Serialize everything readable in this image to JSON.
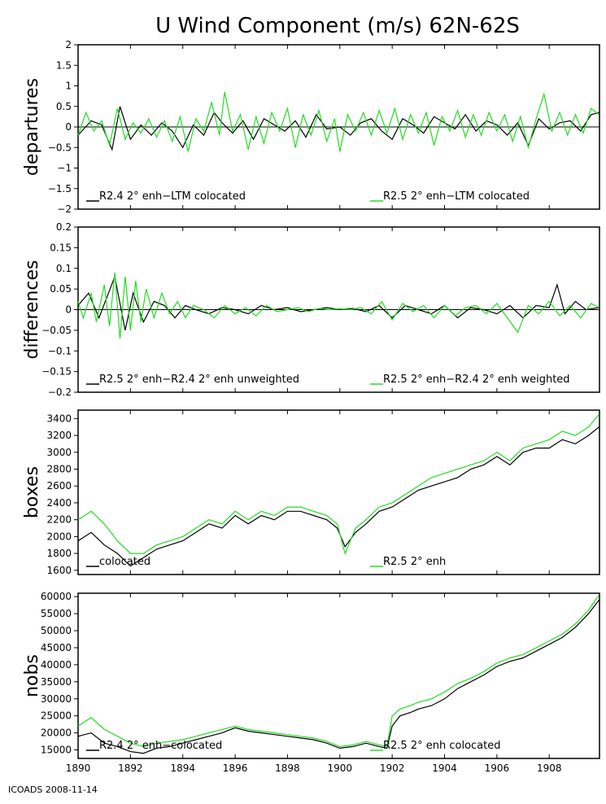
{
  "title": "U Wind Component (m/s) 62N-62S",
  "footer": "ICOADS 2008-11-14",
  "colors": {
    "black_series": "#000000",
    "green_series": "#22dd22",
    "frame": "#000000"
  },
  "x_axis": {
    "range": [
      1890,
      1909.92
    ],
    "ticks": [
      1890,
      1892,
      1894,
      1896,
      1898,
      1900,
      1902,
      1904,
      1906,
      1908
    ],
    "tick_labels": [
      "1890",
      "1892",
      "1894",
      "1896",
      "1898",
      "1900",
      "1902",
      "1904",
      "1906",
      "1908"
    ]
  },
  "chart_data": [
    {
      "type": "line",
      "ylabel": "departures",
      "ylim": [
        -2,
        2
      ],
      "yticks": [
        -2,
        -1.5,
        -1,
        -0.5,
        0,
        0.5,
        1,
        1.5,
        2
      ],
      "ytick_labels": [
        "−2",
        "−1.5",
        "−1",
        "−0.5",
        "0",
        "0.5",
        "1",
        "1.5",
        "2"
      ],
      "zero_line": true,
      "grid": false,
      "legend_position": "bottom",
      "series": [
        {
          "name": "R2.4 2° enh−LTM colocated",
          "color": "#000000",
          "x": [
            1890.0,
            1890.5,
            1890.9,
            1891.3,
            1891.6,
            1892.0,
            1892.4,
            1892.8,
            1893.2,
            1893.6,
            1894.0,
            1894.4,
            1894.8,
            1895.2,
            1895.5,
            1895.9,
            1896.3,
            1896.7,
            1897.1,
            1897.5,
            1897.9,
            1898.3,
            1898.7,
            1899.1,
            1899.5,
            1900.0,
            1900.4,
            1900.8,
            1901.2,
            1901.6,
            1902.0,
            1902.4,
            1902.8,
            1903.2,
            1903.6,
            1904.0,
            1904.4,
            1904.8,
            1905.2,
            1905.6,
            1906.0,
            1906.4,
            1906.8,
            1907.2,
            1907.6,
            1908.0,
            1908.4,
            1908.8,
            1909.2,
            1909.6,
            1909.9
          ],
          "y": [
            -0.2,
            0.15,
            0.05,
            -0.55,
            0.5,
            -0.3,
            0.05,
            -0.2,
            0.1,
            -0.1,
            -0.5,
            0.05,
            -0.2,
            0.35,
            0.1,
            -0.15,
            0.15,
            -0.3,
            0.2,
            0.05,
            -0.1,
            0.15,
            -0.25,
            0.3,
            -0.05,
            0.0,
            -0.2,
            0.1,
            0.2,
            -0.1,
            -0.3,
            0.2,
            0.05,
            -0.15,
            0.25,
            0.1,
            -0.05,
            0.3,
            -0.1,
            0.15,
            0.05,
            -0.2,
            0.1,
            -0.45,
            0.2,
            -0.05,
            0.1,
            0.15,
            -0.1,
            0.3,
            0.35
          ]
        },
        {
          "name": "R2.5 2° enh−LTM colocated",
          "color": "#22dd22",
          "x": [
            1890.0,
            1890.3,
            1890.6,
            1890.9,
            1891.2,
            1891.5,
            1891.8,
            1892.1,
            1892.4,
            1892.7,
            1893.0,
            1893.3,
            1893.6,
            1893.9,
            1894.2,
            1894.5,
            1894.8,
            1895.1,
            1895.4,
            1895.6,
            1895.9,
            1896.2,
            1896.5,
            1896.8,
            1897.1,
            1897.4,
            1897.7,
            1898.0,
            1898.3,
            1898.6,
            1898.9,
            1899.2,
            1899.5,
            1899.8,
            1900.0,
            1900.3,
            1900.6,
            1900.9,
            1901.2,
            1901.5,
            1901.8,
            1902.1,
            1902.4,
            1902.7,
            1903.0,
            1903.3,
            1903.6,
            1903.9,
            1904.2,
            1904.5,
            1904.8,
            1905.1,
            1905.4,
            1905.7,
            1906.0,
            1906.3,
            1906.6,
            1906.9,
            1907.2,
            1907.5,
            1907.8,
            1908.1,
            1908.4,
            1908.7,
            1909.0,
            1909.3,
            1909.6,
            1909.9
          ],
          "y": [
            -0.2,
            0.35,
            -0.1,
            0.15,
            -0.45,
            0.45,
            -0.3,
            0.1,
            -0.15,
            0.2,
            -0.25,
            0.15,
            -0.35,
            0.25,
            -0.6,
            0.2,
            -0.1,
            0.6,
            -0.2,
            0.85,
            -0.1,
            0.3,
            -0.55,
            0.25,
            -0.4,
            0.35,
            -0.1,
            0.45,
            -0.5,
            0.3,
            -0.2,
            0.4,
            -0.35,
            0.2,
            -0.6,
            0.3,
            -0.1,
            0.35,
            -0.2,
            0.4,
            -0.15,
            0.45,
            -0.3,
            0.3,
            -0.15,
            0.35,
            -0.45,
            0.25,
            -0.1,
            0.4,
            -0.25,
            0.3,
            -0.2,
            0.35,
            -0.1,
            0.3,
            -0.35,
            0.25,
            -0.5,
            0.2,
            0.8,
            -0.1,
            0.35,
            -0.2,
            0.3,
            -0.15,
            0.45,
            0.3
          ]
        }
      ]
    },
    {
      "type": "line",
      "ylabel": "differences",
      "ylim": [
        -0.2,
        0.2
      ],
      "yticks": [
        -0.2,
        -0.15,
        -0.1,
        -0.05,
        0,
        0.05,
        0.1,
        0.15,
        0.2
      ],
      "ytick_labels": [
        "−0.2",
        "−0.15",
        "−0.1",
        "−0.05",
        "0",
        "0.05",
        "0.1",
        "0.15",
        "0.2"
      ],
      "zero_line": true,
      "grid": false,
      "legend_position": "bottom",
      "series": [
        {
          "name": "R2.5 2° enh−R2.4 2° enh unweighted",
          "color": "#000000",
          "x": [
            1890.0,
            1890.4,
            1890.8,
            1891.1,
            1891.4,
            1891.8,
            1892.1,
            1892.5,
            1892.9,
            1893.3,
            1893.7,
            1894.1,
            1894.5,
            1895.0,
            1895.5,
            1896.0,
            1896.5,
            1897.0,
            1897.5,
            1898.0,
            1898.5,
            1899.0,
            1899.5,
            1900.0,
            1900.5,
            1901.0,
            1901.5,
            1902.0,
            1902.5,
            1903.0,
            1903.5,
            1904.0,
            1904.5,
            1905.0,
            1905.5,
            1906.0,
            1906.5,
            1907.0,
            1907.5,
            1908.0,
            1908.3,
            1908.6,
            1909.0,
            1909.4,
            1909.9
          ],
          "y": [
            0.01,
            0.04,
            -0.02,
            0.03,
            0.08,
            -0.05,
            0.04,
            -0.03,
            0.02,
            0.01,
            -0.02,
            0.01,
            0.0,
            -0.01,
            0.005,
            0.0,
            -0.01,
            0.01,
            0.0,
            0.005,
            -0.005,
            0.0,
            0.005,
            0.0,
            0.003,
            -0.005,
            0.01,
            -0.02,
            0.01,
            0.0,
            -0.01,
            0.01,
            -0.02,
            0.005,
            0.0,
            -0.01,
            0.01,
            -0.02,
            0.01,
            0.005,
            0.06,
            -0.01,
            0.02,
            0.0,
            0.005
          ]
        },
        {
          "name": "R2.5 2° enh−R2.4 2° enh weighted",
          "color": "#22dd22",
          "x": [
            1890.0,
            1890.2,
            1890.5,
            1890.7,
            1891.0,
            1891.2,
            1891.4,
            1891.6,
            1891.8,
            1892.0,
            1892.2,
            1892.4,
            1892.6,
            1892.9,
            1893.2,
            1893.5,
            1893.8,
            1894.1,
            1894.4,
            1894.8,
            1895.2,
            1895.6,
            1896.0,
            1896.4,
            1896.8,
            1897.2,
            1897.6,
            1898.0,
            1898.4,
            1898.8,
            1899.2,
            1899.6,
            1900.0,
            1900.4,
            1900.8,
            1901.2,
            1901.6,
            1902.0,
            1902.4,
            1902.8,
            1903.2,
            1903.6,
            1904.0,
            1904.4,
            1904.8,
            1905.2,
            1905.6,
            1906.0,
            1906.4,
            1906.8,
            1907.2,
            1907.6,
            1908.0,
            1908.4,
            1908.8,
            1909.2,
            1909.6,
            1909.9
          ],
          "y": [
            0.02,
            -0.02,
            0.04,
            -0.03,
            0.06,
            -0.04,
            0.09,
            -0.07,
            0.08,
            -0.05,
            0.07,
            -0.03,
            0.05,
            -0.02,
            0.04,
            -0.01,
            0.02,
            -0.02,
            0.01,
            0.0,
            -0.02,
            0.01,
            -0.01,
            0.005,
            -0.015,
            0.01,
            -0.005,
            0.0,
            0.005,
            -0.005,
            0.003,
            0.0,
            0.002,
            0.0,
            0.005,
            -0.01,
            0.02,
            -0.025,
            0.015,
            -0.005,
            0.01,
            -0.02,
            0.01,
            -0.015,
            0.005,
            0.01,
            -0.01,
            0.015,
            -0.02,
            -0.055,
            0.01,
            -0.01,
            0.02,
            -0.015,
            0.01,
            -0.02,
            0.015,
            0.005
          ]
        }
      ]
    },
    {
      "type": "line",
      "ylabel": "boxes",
      "ylim": [
        1550,
        3500
      ],
      "yticks": [
        1600,
        1800,
        2000,
        2200,
        2400,
        2600,
        2800,
        3000,
        3200,
        3400
      ],
      "ytick_labels": [
        "1600",
        "1800",
        "2000",
        "2200",
        "2400",
        "2600",
        "2800",
        "3000",
        "3200",
        "3400"
      ],
      "zero_line": false,
      "grid": false,
      "legend_position": "bottom",
      "series": [
        {
          "name": "colocated",
          "color": "#000000",
          "x": [
            1890.0,
            1890.5,
            1891.0,
            1891.5,
            1892.0,
            1892.5,
            1893.0,
            1893.5,
            1894.0,
            1894.5,
            1895.0,
            1895.5,
            1896.0,
            1896.5,
            1897.0,
            1897.5,
            1898.0,
            1898.5,
            1899.0,
            1899.5,
            1899.9,
            1900.2,
            1900.6,
            1901.0,
            1901.5,
            1902.0,
            1902.5,
            1903.0,
            1903.5,
            1904.0,
            1904.5,
            1905.0,
            1905.5,
            1906.0,
            1906.5,
            1907.0,
            1907.5,
            1908.0,
            1908.5,
            1909.0,
            1909.5,
            1909.9
          ],
          "y": [
            1950,
            2050,
            1900,
            1800,
            1650,
            1750,
            1850,
            1900,
            1950,
            2050,
            2150,
            2100,
            2250,
            2150,
            2250,
            2200,
            2300,
            2300,
            2250,
            2200,
            2100,
            1880,
            2050,
            2150,
            2300,
            2350,
            2450,
            2550,
            2600,
            2650,
            2700,
            2800,
            2850,
            2950,
            2850,
            3000,
            3050,
            3050,
            3150,
            3100,
            3200,
            3300
          ]
        },
        {
          "name": "R2.5 2° enh",
          "color": "#22dd22",
          "x": [
            1890.0,
            1890.5,
            1891.0,
            1891.5,
            1892.0,
            1892.5,
            1893.0,
            1893.5,
            1894.0,
            1894.5,
            1895.0,
            1895.5,
            1896.0,
            1896.5,
            1897.0,
            1897.5,
            1898.0,
            1898.5,
            1899.0,
            1899.5,
            1899.9,
            1900.2,
            1900.6,
            1901.0,
            1901.5,
            1902.0,
            1902.5,
            1903.0,
            1903.5,
            1904.0,
            1904.5,
            1905.0,
            1905.5,
            1906.0,
            1906.5,
            1907.0,
            1907.5,
            1908.0,
            1908.5,
            1909.0,
            1909.5,
            1909.9
          ],
          "y": [
            2200,
            2300,
            2150,
            1950,
            1800,
            1800,
            1900,
            1950,
            2000,
            2100,
            2200,
            2150,
            2300,
            2200,
            2300,
            2250,
            2350,
            2350,
            2300,
            2250,
            2150,
            1800,
            2100,
            2200,
            2350,
            2400,
            2500,
            2600,
            2700,
            2750,
            2800,
            2850,
            2900,
            3000,
            2900,
            3050,
            3100,
            3150,
            3250,
            3200,
            3300,
            3450
          ]
        }
      ]
    },
    {
      "type": "line",
      "ylabel": "nobs",
      "ylim": [
        12500,
        61000
      ],
      "yticks": [
        15000,
        20000,
        25000,
        30000,
        35000,
        40000,
        45000,
        50000,
        55000,
        60000
      ],
      "ytick_labels": [
        "15000",
        "20000",
        "25000",
        "30000",
        "35000",
        "40000",
        "45000",
        "50000",
        "55000",
        "60000"
      ],
      "zero_line": false,
      "grid": false,
      "legend_position": "bottom",
      "series": [
        {
          "name": "R2.4 2° enh−colocated",
          "color": "#000000",
          "x": [
            1890.0,
            1890.5,
            1891.0,
            1891.5,
            1892.0,
            1892.5,
            1893.0,
            1893.5,
            1894.0,
            1894.5,
            1895.0,
            1895.5,
            1896.0,
            1896.5,
            1897.0,
            1897.5,
            1898.0,
            1898.5,
            1899.0,
            1899.5,
            1900.0,
            1900.5,
            1901.0,
            1901.5,
            1901.8,
            1902.0,
            1902.3,
            1902.7,
            1903.0,
            1903.5,
            1904.0,
            1904.5,
            1905.0,
            1905.5,
            1906.0,
            1906.5,
            1907.0,
            1907.5,
            1908.0,
            1908.5,
            1909.0,
            1909.5,
            1909.9
          ],
          "y": [
            19000,
            20000,
            17000,
            16000,
            14500,
            14000,
            15500,
            16000,
            17000,
            18000,
            19000,
            20000,
            21500,
            20500,
            20000,
            19500,
            19000,
            18500,
            18000,
            17000,
            15500,
            16000,
            17000,
            16000,
            15500,
            22000,
            25000,
            26000,
            27000,
            28000,
            30000,
            33000,
            35000,
            37000,
            39500,
            41000,
            42000,
            44000,
            46000,
            48000,
            51000,
            55000,
            59000
          ]
        },
        {
          "name": "R2.5 2° enh colocated",
          "color": "#22dd22",
          "x": [
            1890.0,
            1890.5,
            1891.0,
            1891.5,
            1892.0,
            1892.5,
            1893.0,
            1893.5,
            1894.0,
            1894.5,
            1895.0,
            1895.5,
            1896.0,
            1896.5,
            1897.0,
            1897.5,
            1898.0,
            1898.5,
            1899.0,
            1899.5,
            1900.0,
            1900.5,
            1901.0,
            1901.5,
            1901.8,
            1902.0,
            1902.3,
            1902.7,
            1903.0,
            1903.5,
            1904.0,
            1904.5,
            1905.0,
            1905.5,
            1906.0,
            1906.5,
            1907.0,
            1907.5,
            1908.0,
            1908.5,
            1909.0,
            1909.5,
            1909.9
          ],
          "y": [
            22000,
            24500,
            21000,
            19000,
            17000,
            16000,
            17000,
            17500,
            18000,
            19000,
            20000,
            21000,
            22000,
            21000,
            20500,
            20000,
            19500,
            19000,
            18500,
            17500,
            16000,
            16500,
            17500,
            16500,
            16000,
            25000,
            27000,
            28000,
            29000,
            30000,
            32000,
            34500,
            36000,
            38000,
            40500,
            42000,
            43000,
            45000,
            47000,
            49000,
            52000,
            56000,
            60500
          ]
        }
      ]
    }
  ]
}
